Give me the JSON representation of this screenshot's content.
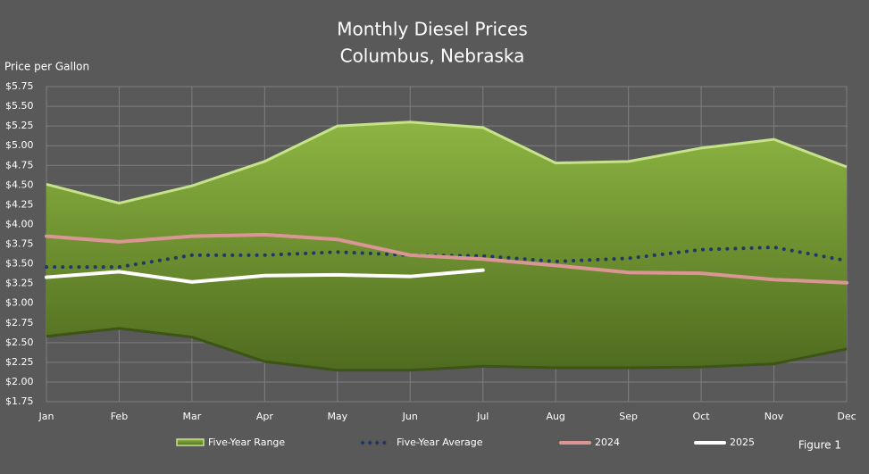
{
  "chart_data": {
    "type": "range-line",
    "title": "Monthly Diesel Prices",
    "subtitle": "Columbus, Nebraska",
    "y_label": "Price per Gallon",
    "annotation": "Figure 1",
    "categories": [
      "Jan",
      "Feb",
      "Mar",
      "Apr",
      "May",
      "Jun",
      "Jul",
      "Aug",
      "Sep",
      "Oct",
      "Nov",
      "Dec"
    ],
    "range": {
      "name": "Five-Year Range",
      "color": "#8db542",
      "high": [
        4.51,
        4.27,
        4.49,
        4.8,
        5.25,
        5.3,
        5.23,
        4.78,
        4.8,
        4.97,
        5.08,
        4.73
      ],
      "low": [
        2.58,
        2.68,
        2.57,
        2.26,
        2.15,
        2.15,
        2.2,
        2.18,
        2.18,
        2.19,
        2.23,
        2.42
      ]
    },
    "series": [
      {
        "name": "Five-Year Average",
        "color": "#1f3864",
        "style": "dotted",
        "values": [
          3.46,
          3.46,
          3.61,
          3.61,
          3.65,
          3.61,
          3.6,
          3.53,
          3.57,
          3.68,
          3.71,
          3.54
        ]
      },
      {
        "name": "2024",
        "color": "#d99694",
        "style": "solid",
        "values": [
          3.85,
          3.78,
          3.85,
          3.87,
          3.81,
          3.61,
          3.56,
          3.48,
          3.39,
          3.38,
          3.3,
          3.26
        ]
      },
      {
        "name": "2025",
        "color": "#ffffff",
        "style": "solid",
        "values": [
          3.33,
          3.4,
          3.27,
          3.35,
          3.36,
          3.34,
          3.42,
          null,
          null,
          null,
          null,
          null
        ]
      }
    ],
    "ylim": [
      1.75,
      5.75
    ],
    "yticks": [
      {
        "value": 1.75,
        "label": "$1.75"
      },
      {
        "value": 2.0,
        "label": "$2.00"
      },
      {
        "value": 2.25,
        "label": "$2.25"
      },
      {
        "value": 2.5,
        "label": "$2.50"
      },
      {
        "value": 2.75,
        "label": "$2.75"
      },
      {
        "value": 3.0,
        "label": "$3.00"
      },
      {
        "value": 3.25,
        "label": "$3.25"
      },
      {
        "value": 3.5,
        "label": "$3.50"
      },
      {
        "value": 3.75,
        "label": "$3.75"
      },
      {
        "value": 4.0,
        "label": "$4.00"
      },
      {
        "value": 4.25,
        "label": "$4.25"
      },
      {
        "value": 4.5,
        "label": "$4.50"
      },
      {
        "value": 4.75,
        "label": "$4.75"
      },
      {
        "value": 5.0,
        "label": "$5.00"
      },
      {
        "value": 5.25,
        "label": "$5.25"
      },
      {
        "value": 5.5,
        "label": "$5.50"
      },
      {
        "value": 5.75,
        "label": "$5.75"
      }
    ],
    "grid": true
  }
}
